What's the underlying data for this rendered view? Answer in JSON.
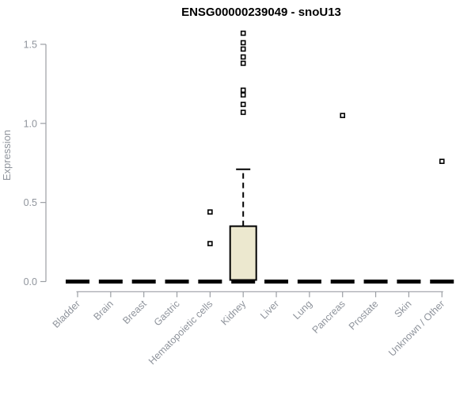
{
  "chart_data": {
    "type": "boxplot",
    "title": "ENSG00000239049 - snoU13",
    "xlabel": "",
    "ylabel": "Expression",
    "ylim": [
      0,
      1.6
    ],
    "yticks": [
      0.0,
      0.5,
      1.0,
      1.5
    ],
    "grid": false,
    "legend": "none",
    "categories": [
      "Bladder",
      "Brain",
      "Breast",
      "Gastric",
      "Hematopoietic cells",
      "Kidney",
      "Liver",
      "Lung",
      "Pancreas",
      "Prostate",
      "Skin",
      "Unknown / Other"
    ],
    "boxes": [
      {
        "label": "Bladder",
        "median": 0,
        "q1": 0,
        "q3": 0,
        "whisker_low": 0,
        "whisker_high": 0,
        "outliers": []
      },
      {
        "label": "Brain",
        "median": 0,
        "q1": 0,
        "q3": 0,
        "whisker_low": 0,
        "whisker_high": 0,
        "outliers": []
      },
      {
        "label": "Breast",
        "median": 0,
        "q1": 0,
        "q3": 0,
        "whisker_low": 0,
        "whisker_high": 0,
        "outliers": []
      },
      {
        "label": "Gastric",
        "median": 0,
        "q1": 0,
        "q3": 0,
        "whisker_low": 0,
        "whisker_high": 0,
        "outliers": []
      },
      {
        "label": "Hematopoietic cells",
        "median": 0,
        "q1": 0,
        "q3": 0,
        "whisker_low": 0,
        "whisker_high": 0,
        "outliers": [
          0.24,
          0.44
        ]
      },
      {
        "label": "Kidney",
        "median": 0,
        "q1": 0.01,
        "q3": 0.35,
        "whisker_low": 0,
        "whisker_high": 0.71,
        "outliers": [
          1.07,
          1.12,
          1.18,
          1.21,
          1.38,
          1.42,
          1.47,
          1.51,
          1.57
        ]
      },
      {
        "label": "Liver",
        "median": 0,
        "q1": 0,
        "q3": 0,
        "whisker_low": 0,
        "whisker_high": 0,
        "outliers": []
      },
      {
        "label": "Lung",
        "median": 0,
        "q1": 0,
        "q3": 0,
        "whisker_low": 0,
        "whisker_high": 0,
        "outliers": []
      },
      {
        "label": "Pancreas",
        "median": 0,
        "q1": 0,
        "q3": 0,
        "whisker_low": 0,
        "whisker_high": 0,
        "outliers": [
          1.05
        ]
      },
      {
        "label": "Prostate",
        "median": 0,
        "q1": 0,
        "q3": 0,
        "whisker_low": 0,
        "whisker_high": 0,
        "outliers": []
      },
      {
        "label": "Skin",
        "median": 0,
        "q1": 0,
        "q3": 0,
        "whisker_low": 0,
        "whisker_high": 0,
        "outliers": []
      },
      {
        "label": "Unknown / Other",
        "median": 0,
        "q1": 0,
        "q3": 0,
        "whisker_low": 0,
        "whisker_high": 0,
        "outliers": [
          0.76
        ]
      }
    ],
    "colors": {
      "box_fill": "#ece8cf",
      "box_stroke": "#000000",
      "median": "#000000",
      "outlier_stroke": "#000000",
      "outlier_fill": "#ffffff",
      "axis_line": "#9b9ea4",
      "axis_label": "#8f949c",
      "title": "#000000",
      "background": "#ffffff"
    }
  }
}
